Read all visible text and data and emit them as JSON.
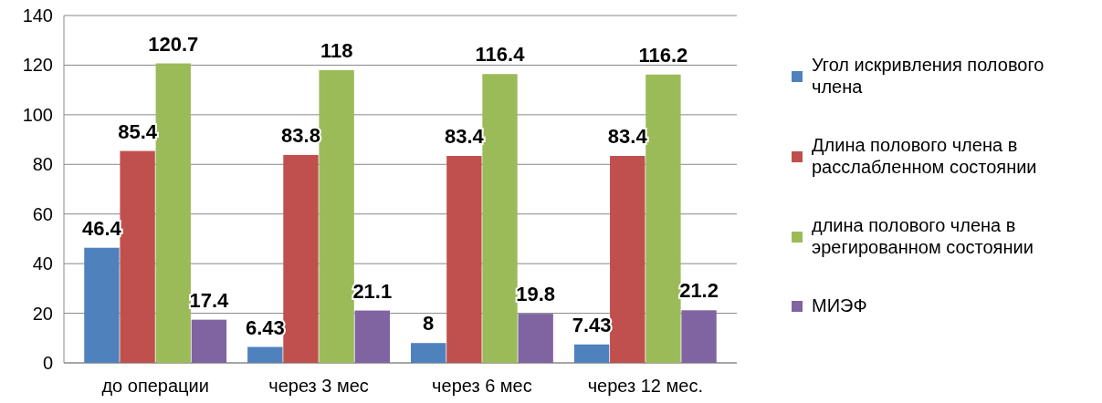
{
  "chart_data": {
    "type": "bar",
    "categories": [
      "до операции",
      "через 3 мес",
      "через 6 мес",
      "через 12 мес."
    ],
    "series": [
      {
        "name": "Угол искривления полового члена",
        "color": "#4f81bd",
        "values": [
          46.4,
          6.43,
          8,
          7.43
        ]
      },
      {
        "name": "Длина полового члена в расслабленном состоянии",
        "color": "#c0504d",
        "values": [
          85.4,
          83.8,
          83.4,
          83.4
        ]
      },
      {
        "name": "длина полового члена в эрегированном состоянии",
        "color": "#9bbb59",
        "values": [
          120.7,
          118,
          116.4,
          116.2
        ]
      },
      {
        "name": "МИЭФ",
        "color": "#8064a2",
        "values": [
          17.4,
          21.1,
          19.8,
          21.2
        ]
      }
    ],
    "ylim": [
      0,
      140
    ],
    "yticks": [
      0,
      20,
      40,
      60,
      80,
      100,
      120,
      140
    ],
    "grid": "y",
    "legend": "right",
    "data_labels": true
  }
}
